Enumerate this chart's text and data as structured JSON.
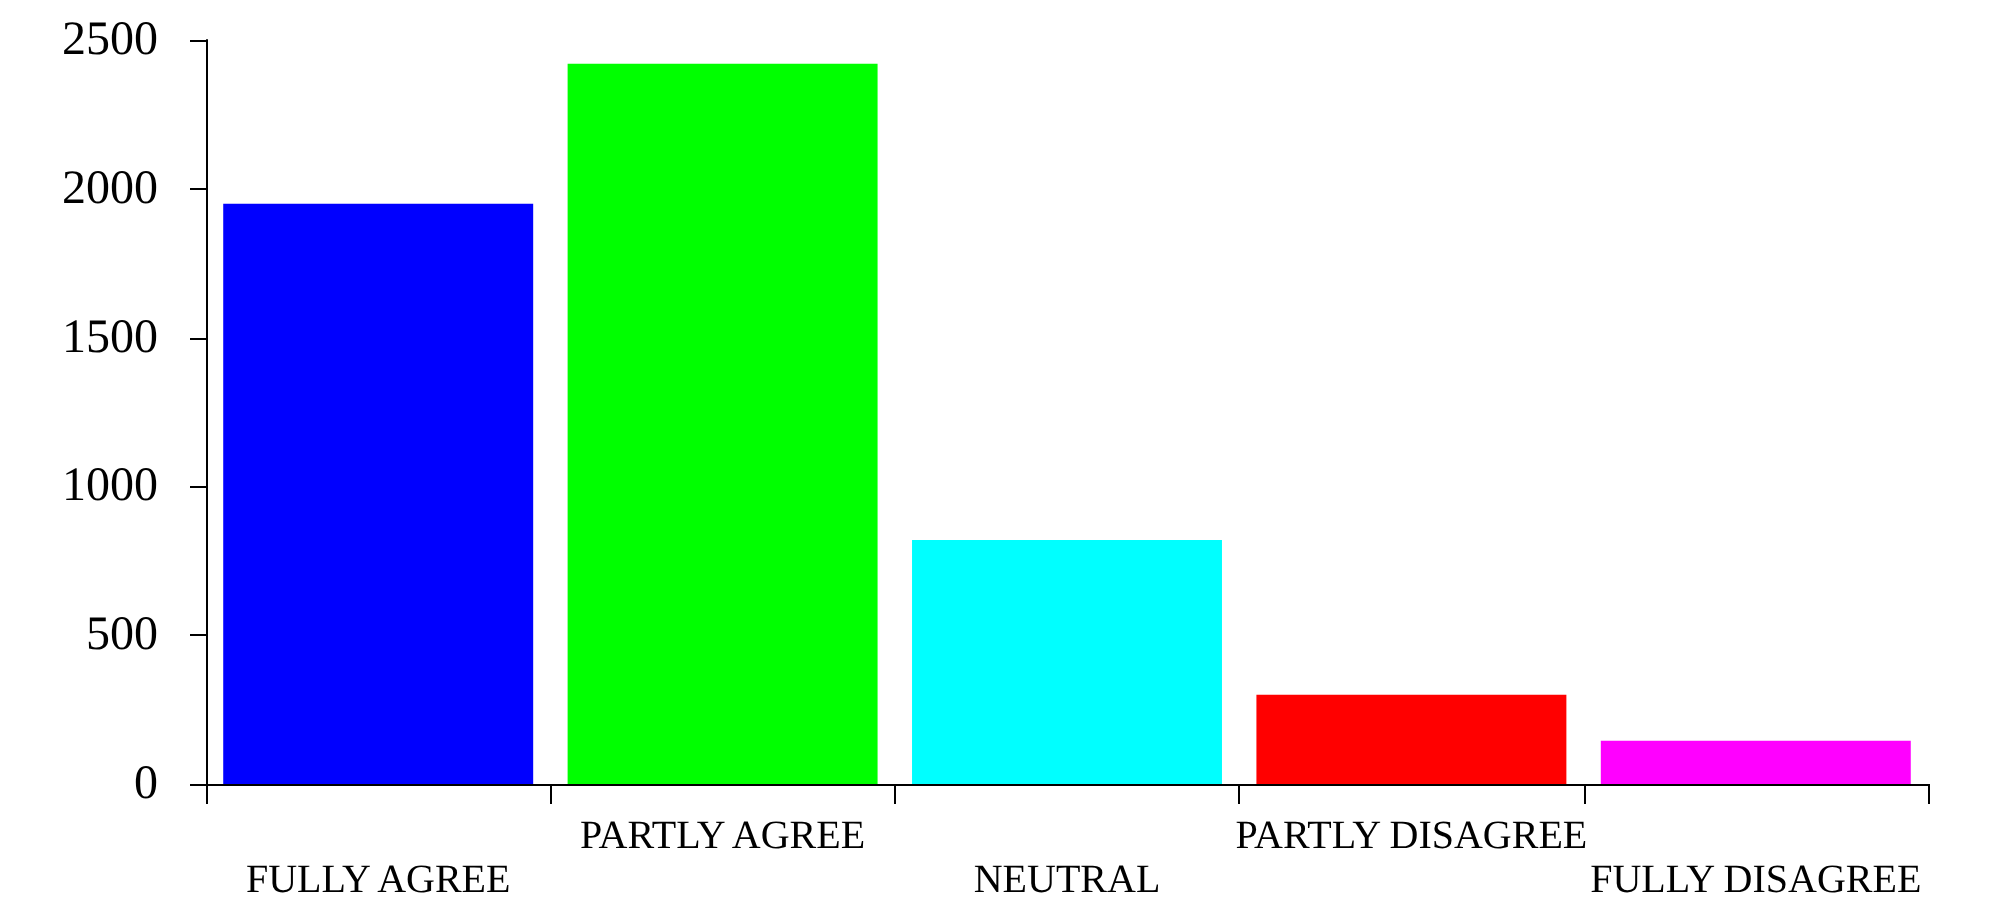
{
  "chart_data": {
    "type": "bar",
    "categories": [
      "FULLY AGREE",
      "PARTLY AGREE",
      "NEUTRAL",
      "PARTLY DISAGREE",
      "FULLY DISAGREE"
    ],
    "values": [
      1950,
      2420,
      820,
      300,
      145
    ],
    "colors": [
      "#0000ff",
      "#00ff00",
      "#00ffff",
      "#ff0000",
      "#ff00ff"
    ],
    "ylim": [
      0,
      2500
    ],
    "yticks": [
      0,
      500,
      1000,
      1500,
      2000,
      2500
    ],
    "grid": false
  }
}
